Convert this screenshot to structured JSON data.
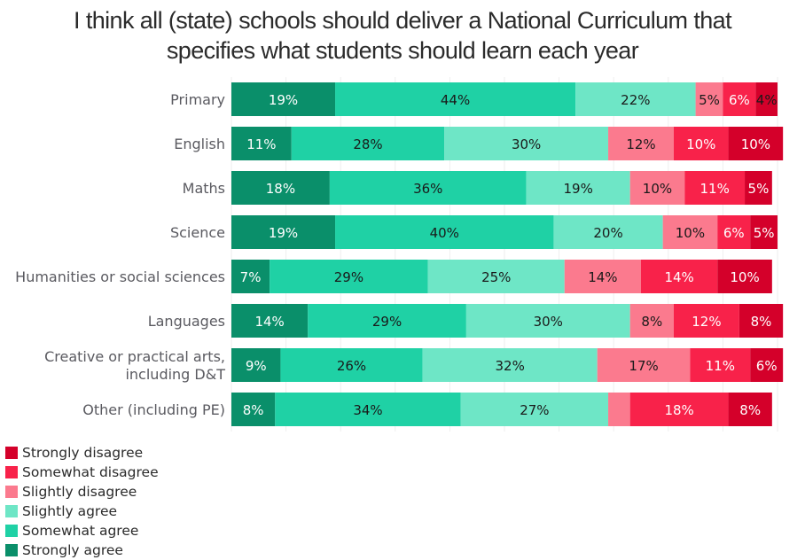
{
  "chart_data": {
    "type": "bar",
    "orientation": "horizontal",
    "stacked": true,
    "normalized_percent": true,
    "title": "I think all (state) schools should deliver a National Curriculum that specifies what students should learn each year",
    "title_lines": [
      "I think all (state) schools should deliver a National Curriculum that",
      "specifies what students should learn each year"
    ],
    "xlabel": "",
    "ylabel": "",
    "xlim": [
      0,
      100
    ],
    "grid": true,
    "legend_position": "bottom-left",
    "categories": [
      [
        "Primary"
      ],
      [
        "English"
      ],
      [
        "Maths"
      ],
      [
        "Science"
      ],
      [
        "Humanities or social sciences"
      ],
      [
        "Languages"
      ],
      [
        "Creative or practical arts,",
        "including D&T"
      ],
      [
        "Other (including PE)"
      ]
    ],
    "series": [
      {
        "name": "Strongly agree",
        "color": "#0a8f6a",
        "label_color": "#ffffff",
        "values": [
          19,
          11,
          18,
          19,
          7,
          14,
          9,
          8
        ]
      },
      {
        "name": "Somewhat agree",
        "color": "#1fd1a5",
        "label_color": "#1a1a1a",
        "values": [
          44,
          28,
          36,
          40,
          29,
          29,
          26,
          34
        ]
      },
      {
        "name": "Slightly agree",
        "color": "#6ee6c6",
        "label_color": "#1a1a1a",
        "values": [
          22,
          30,
          19,
          20,
          25,
          30,
          32,
          27
        ]
      },
      {
        "name": "Slightly disagree",
        "color": "#fb7a8e",
        "label_color": "#1a1a1a",
        "values": [
          5,
          12,
          10,
          10,
          14,
          8,
          17,
          4
        ]
      },
      {
        "name": "Somewhat disagree",
        "color": "#f8224a",
        "label_color": "#ffffff",
        "values": [
          6,
          10,
          11,
          6,
          14,
          12,
          11,
          18
        ]
      },
      {
        "name": "Strongly disagree",
        "color": "#d4002a",
        "label_color": "#ffffff",
        "values": [
          4,
          10,
          5,
          5,
          10,
          8,
          6,
          8
        ]
      }
    ],
    "hidden_labels": [
      [
        7,
        3
      ]
    ],
    "dark_label_overrides": [
      [
        0,
        5
      ]
    ],
    "legend_order": [
      "Strongly disagree",
      "Somewhat disagree",
      "Slightly disagree",
      "Slightly agree",
      "Somewhat agree",
      "Strongly agree"
    ]
  }
}
